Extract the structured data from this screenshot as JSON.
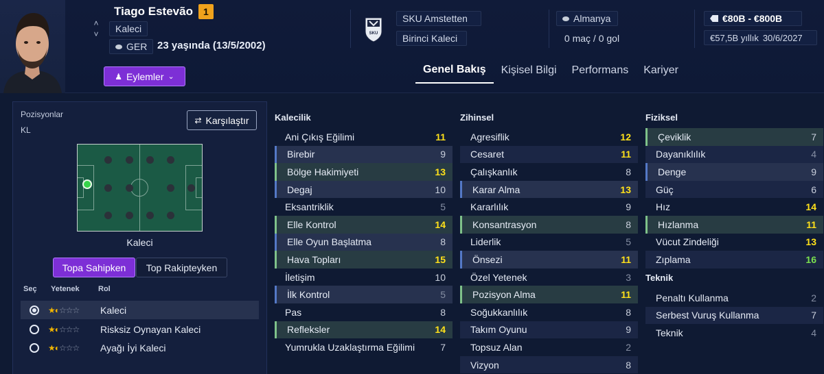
{
  "player": {
    "name": "Tiago Estevão",
    "squad_number": "1",
    "position": "Kaleci",
    "nationality": "GER",
    "age": "23 yaşında (13/5/2002)",
    "actions_label": "Eylemler"
  },
  "club": {
    "name": "SKU Amstetten",
    "squad_role": "Birinci Kaleci",
    "logo_text": "SKU"
  },
  "country": {
    "name": "Almanya",
    "caps": "0 maç / 0 gol"
  },
  "value": {
    "range": "€80B - €800B",
    "wage": "€57,5B yıllık",
    "contract_end": "30/6/2027"
  },
  "tabs": [
    {
      "label": "Genel Bakış",
      "active": true
    },
    {
      "label": "Kişisel Bilgi",
      "active": false
    },
    {
      "label": "Performans",
      "active": false
    },
    {
      "label": "Kariyer",
      "active": false
    }
  ],
  "left": {
    "positions_label": "Pozisyonlar",
    "position_code": "KL",
    "compare_label": "Karşılaştır",
    "pitch_label": "Kaleci",
    "toggle_on": "Topa Sahipken",
    "toggle_off": "Top Rakipteyken",
    "headers": {
      "select": "Seç",
      "ability": "Yetenek",
      "role": "Rol"
    },
    "roles": [
      {
        "name": "Kaleci",
        "selected": true,
        "stars": 1.5
      },
      {
        "name": "Risksiz Oynayan Kaleci",
        "selected": false,
        "stars": 1.5
      },
      {
        "name": "Ayağı İyi Kaleci",
        "selected": false,
        "stars": 1.5
      }
    ]
  },
  "attributes": {
    "goalkeeping": {
      "title": "Kalecilik",
      "items": [
        {
          "name": "Ani Çıkış Eğilimi",
          "value": 11
        },
        {
          "name": "Birebir",
          "value": 9
        },
        {
          "name": "Bölge Hakimiyeti",
          "value": 13
        },
        {
          "name": "Degaj",
          "value": 10
        },
        {
          "name": "Eksantriklik",
          "value": 5
        },
        {
          "name": "Elle Kontrol",
          "value": 14
        },
        {
          "name": "Elle Oyun Başlatma",
          "value": 8
        },
        {
          "name": "Hava Topları",
          "value": 15
        },
        {
          "name": "İletişim",
          "value": 10
        },
        {
          "name": "İlk Kontrol",
          "value": 5
        },
        {
          "name": "Pas",
          "value": 8
        },
        {
          "name": "Refleksler",
          "value": 14
        },
        {
          "name": "Yumrukla Uzaklaştırma Eğilimi",
          "value": 7
        }
      ]
    },
    "mental": {
      "title": "Zihinsel",
      "items": [
        {
          "name": "Agresiflik",
          "value": 12
        },
        {
          "name": "Cesaret",
          "value": 11
        },
        {
          "name": "Çalışkanlık",
          "value": 8
        },
        {
          "name": "Karar Alma",
          "value": 13
        },
        {
          "name": "Kararlılık",
          "value": 9
        },
        {
          "name": "Konsantrasyon",
          "value": 8
        },
        {
          "name": "Liderlik",
          "value": 5
        },
        {
          "name": "Önsezi",
          "value": 11
        },
        {
          "name": "Özel Yetenek",
          "value": 3
        },
        {
          "name": "Pozisyon Alma",
          "value": 11
        },
        {
          "name": "Soğukkanlılık",
          "value": 8
        },
        {
          "name": "Takım Oyunu",
          "value": 9
        },
        {
          "name": "Topsuz Alan",
          "value": 2
        },
        {
          "name": "Vizyon",
          "value": 8
        }
      ]
    },
    "physical": {
      "title": "Fiziksel",
      "items": [
        {
          "name": "Çeviklik",
          "value": 7
        },
        {
          "name": "Dayanıklılık",
          "value": 4
        },
        {
          "name": "Denge",
          "value": 9
        },
        {
          "name": "Güç",
          "value": 6
        },
        {
          "name": "Hız",
          "value": 14
        },
        {
          "name": "Hızlanma",
          "value": 11
        },
        {
          "name": "Vücut Zindeliği",
          "value": 13
        },
        {
          "name": "Zıplama",
          "value": 16
        }
      ]
    },
    "technical": {
      "title": "Teknik",
      "items": [
        {
          "name": "Penaltı Kullanma",
          "value": 2
        },
        {
          "name": "Serbest Vuruş Kullanma",
          "value": 7
        },
        {
          "name": "Teknik",
          "value": 4
        }
      ]
    }
  }
}
